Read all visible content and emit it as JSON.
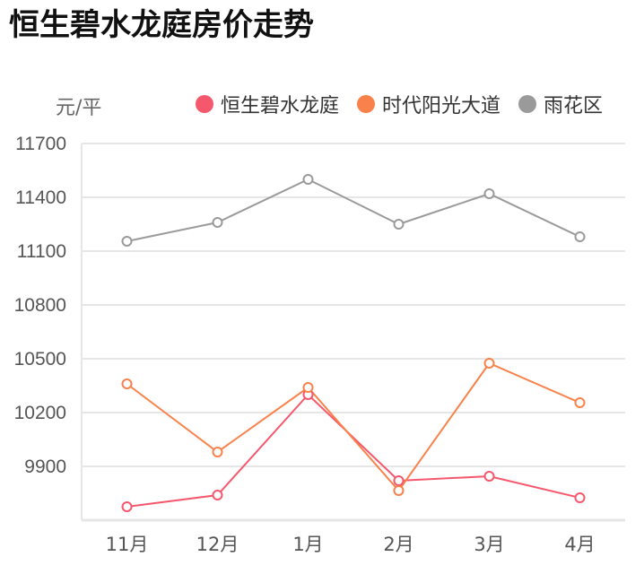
{
  "title": "恒生碧水龙庭房价走势",
  "unit_label": "元/平",
  "legend": [
    {
      "label": "恒生碧水龙庭",
      "color": "#f5576c"
    },
    {
      "label": "时代阳光大道",
      "color": "#f9814a"
    },
    {
      "label": "雨花区",
      "color": "#9a9a9a"
    }
  ],
  "chart_data": {
    "type": "line",
    "title": "恒生碧水龙庭房价走势",
    "xlabel": "",
    "ylabel": "元/平",
    "categories": [
      "11月",
      "12月",
      "1月",
      "2月",
      "3月",
      "4月"
    ],
    "yticks": [
      9900,
      10200,
      10500,
      10800,
      11100,
      11400,
      11700
    ],
    "ylim": [
      9600,
      11700
    ],
    "grid": true,
    "legend_position": "top-right",
    "series": [
      {
        "name": "恒生碧水龙庭",
        "color": "#f5576c",
        "values": [
          9675,
          9740,
          10300,
          9820,
          9845,
          9725
        ]
      },
      {
        "name": "时代阳光大道",
        "color": "#f9814a",
        "values": [
          10360,
          9980,
          10340,
          9765,
          10475,
          10255
        ]
      },
      {
        "name": "雨花区",
        "color": "#9a9a9a",
        "values": [
          11155,
          11260,
          11500,
          11250,
          11420,
          11180
        ]
      }
    ]
  }
}
